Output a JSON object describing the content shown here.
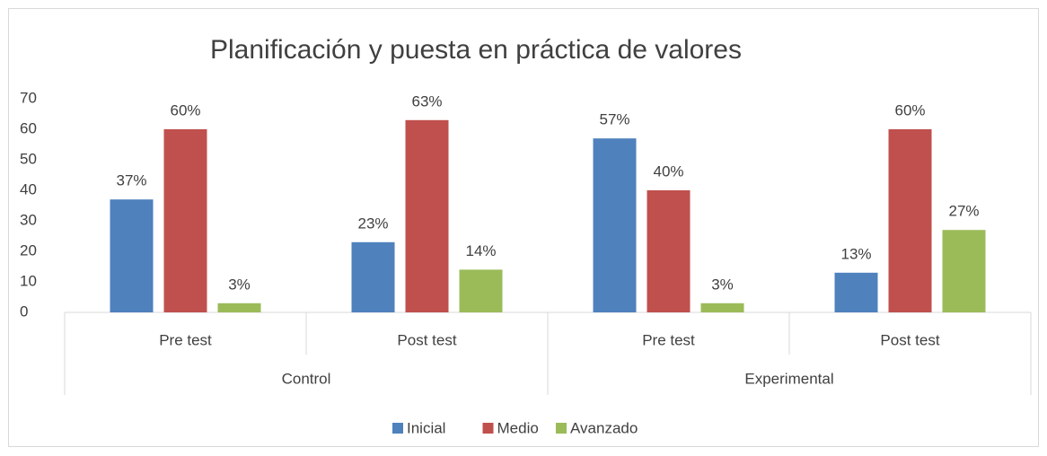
{
  "chart_data": {
    "type": "bar",
    "title": "Planificación y puesta en práctica de valores",
    "groups": [
      {
        "name": "Control",
        "categories": [
          "Pre test",
          "Post test"
        ]
      },
      {
        "name": "Experimental",
        "categories": [
          "Pre test",
          "Post test"
        ]
      }
    ],
    "series": [
      {
        "name": "Inicial",
        "color": "#4f81bd",
        "values": [
          37,
          23,
          57,
          13
        ],
        "value_labels": [
          "37%",
          "23%",
          "57%",
          "13%"
        ]
      },
      {
        "name": "Medio",
        "color": "#c0504d",
        "values": [
          60,
          63,
          40,
          60
        ],
        "value_labels": [
          "60%",
          "63%",
          "40%",
          "60%"
        ]
      },
      {
        "name": "Avanzado",
        "color": "#9bbb59",
        "values": [
          3,
          14,
          3,
          27
        ],
        "value_labels": [
          "3%",
          "14%",
          "3%",
          "27%"
        ]
      }
    ],
    "ylim": [
      0,
      70
    ],
    "yticks": [
      0,
      10,
      20,
      30,
      40,
      50,
      60,
      70
    ],
    "grid": false,
    "legend": "bottom"
  }
}
